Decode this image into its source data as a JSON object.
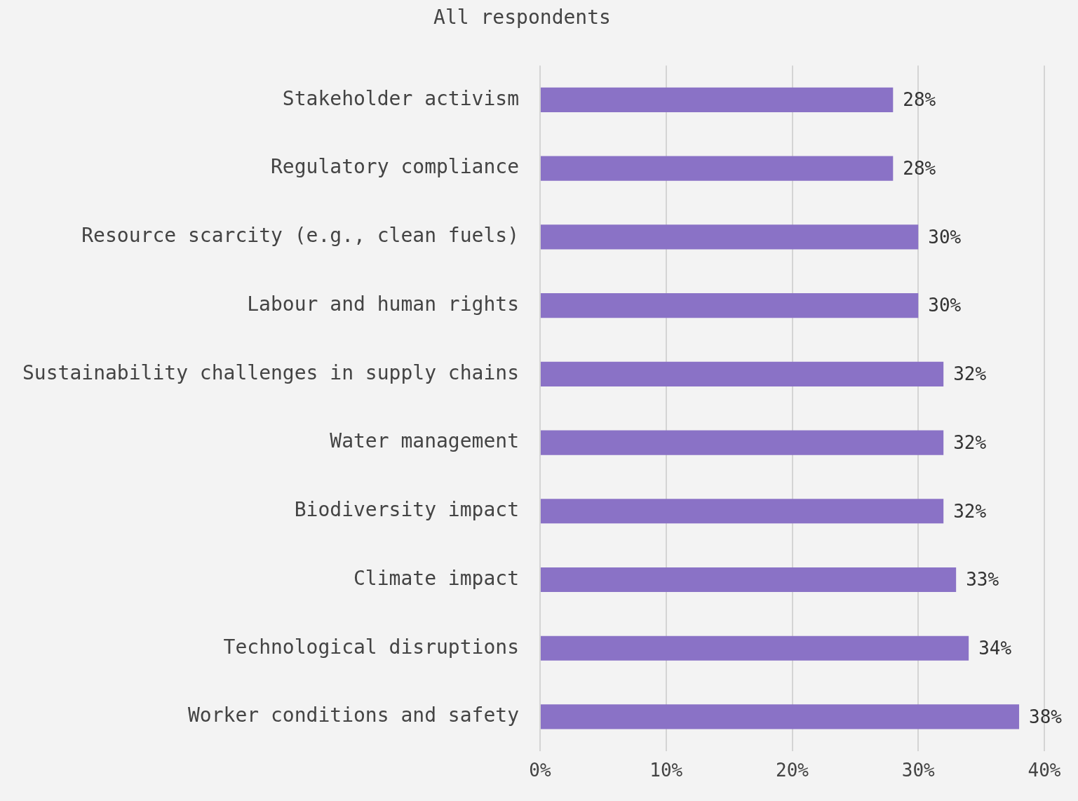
{
  "chart_data": {
    "type": "bar",
    "orientation": "horizontal",
    "title": "All respondents",
    "categories": [
      "Stakeholder activism",
      "Regulatory compliance",
      "Resource scarcity (e.g., clean fuels)",
      "Labour and human rights",
      "Sustainability challenges in supply chains",
      "Water management",
      "Biodiversity impact",
      "Climate impact",
      "Technological disruptions",
      "Worker conditions and safety"
    ],
    "values": [
      28,
      28,
      30,
      30,
      32,
      32,
      32,
      33,
      34,
      38
    ],
    "value_labels": [
      "28%",
      "28%",
      "30%",
      "30%",
      "32%",
      "32%",
      "32%",
      "33%",
      "34%",
      "38%"
    ],
    "color": "#8a72c6",
    "xlim": [
      0,
      40
    ],
    "xticks": [
      {
        "value": 0,
        "label": "0%"
      },
      {
        "value": 10,
        "label": "10%"
      },
      {
        "value": 20,
        "label": "20%"
      },
      {
        "value": 30,
        "label": "30%"
      },
      {
        "value": 40,
        "label": "40%"
      }
    ],
    "grid": "x",
    "legend": false
  }
}
